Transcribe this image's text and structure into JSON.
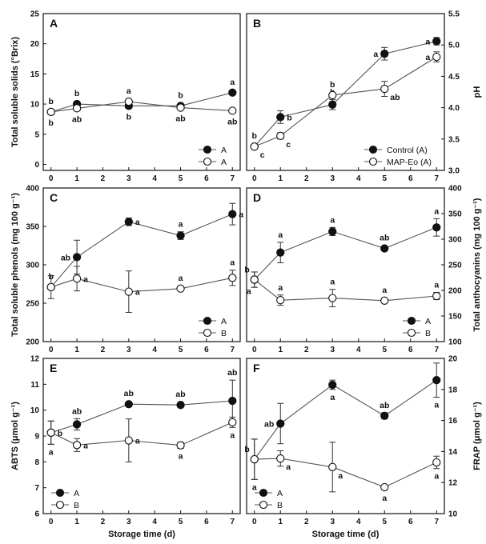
{
  "chart_data": [
    {
      "panel": "A",
      "type": "line",
      "x": [
        0,
        1,
        3,
        5,
        7
      ],
      "xlim": [
        -0.3,
        7.3
      ],
      "xticks": [
        0,
        1,
        2,
        3,
        4,
        5,
        6,
        7
      ],
      "ylim": [
        -1,
        25
      ],
      "yticks": [
        0,
        5,
        10,
        15,
        20,
        25
      ],
      "ylabel": "Total soluble solids (°Brix)",
      "yaxis_side": "left",
      "xlabel": "",
      "series": [
        {
          "name": "A",
          "marker": "filled",
          "values": [
            8.7,
            10.0,
            9.7,
            9.7,
            11.9
          ],
          "errors": [
            0,
            0,
            0,
            0,
            0
          ],
          "letters": [
            "b",
            "b",
            "b",
            "b",
            "a"
          ],
          "letter_pos": [
            "above",
            "above",
            "below",
            "above",
            "above"
          ]
        },
        {
          "name": "A",
          "marker": "open",
          "values": [
            8.7,
            9.3,
            10.4,
            9.4,
            8.9
          ],
          "errors": [
            0,
            0,
            0,
            0,
            0
          ],
          "letters": [
            "b",
            "ab",
            "a",
            "ab",
            "ab"
          ],
          "letter_pos": [
            "below",
            "below",
            "above",
            "below",
            "below"
          ]
        }
      ],
      "legend": "bottom-right"
    },
    {
      "panel": "B",
      "type": "line",
      "x": [
        0,
        1,
        3,
        5,
        7
      ],
      "xlim": [
        -0.3,
        7.3
      ],
      "xticks": [
        0,
        1,
        2,
        3,
        4,
        5,
        6,
        7
      ],
      "ylim": [
        3.0,
        5.5
      ],
      "yticks": [
        3.0,
        3.5,
        4.0,
        4.5,
        5.0,
        5.5
      ],
      "ylabel": "pH",
      "yaxis_side": "right",
      "xlabel": "",
      "series": [
        {
          "name": "Control (A)",
          "marker": "filled",
          "values": [
            3.38,
            3.85,
            4.05,
            4.86,
            5.06
          ],
          "errors": [
            0.03,
            0.1,
            0.08,
            0.1,
            0.06
          ],
          "letters": [
            "b",
            "b",
            "b",
            "a",
            "a"
          ],
          "letter_pos": [
            "above",
            "right",
            "above",
            "left",
            "left"
          ]
        },
        {
          "name": "MAP-Eo (A)",
          "marker": "open",
          "values": [
            3.38,
            3.55,
            4.2,
            4.3,
            4.81
          ],
          "errors": [
            0.03,
            0.05,
            0.02,
            0.12,
            0.08
          ],
          "letters": [
            "c",
            "c",
            "b",
            "ab",
            "a"
          ],
          "letter_pos": [
            "below-right",
            "below-right",
            "above",
            "below-right",
            "left"
          ]
        }
      ],
      "legend": "bottom-right"
    },
    {
      "panel": "C",
      "type": "line",
      "x": [
        0,
        1,
        3,
        5,
        7
      ],
      "xlim": [
        -0.3,
        7.3
      ],
      "xticks": [
        0,
        1,
        2,
        3,
        4,
        5,
        6,
        7
      ],
      "ylim": [
        200,
        400
      ],
      "yticks": [
        200,
        250,
        300,
        350,
        400
      ],
      "ylabel": "Total soluble phenols (mg 100 g⁻¹)",
      "yaxis_side": "left",
      "xlabel": "",
      "series": [
        {
          "name": "A",
          "marker": "filled",
          "values": [
            271,
            310,
            356,
            338,
            366
          ],
          "errors": [
            0,
            22,
            5,
            5,
            14
          ],
          "letters": [
            "b",
            "ab",
            "a",
            "a",
            "a"
          ],
          "letter_pos": [
            "above",
            "left",
            "right",
            "above",
            "right"
          ]
        },
        {
          "name": "B",
          "marker": "open",
          "values": [
            271,
            282,
            265,
            269,
            283
          ],
          "errors": [
            15,
            16,
            27,
            3,
            10
          ],
          "letters": [
            "",
            "a",
            "a",
            "a",
            "a"
          ],
          "letter_pos": [
            "above",
            "right",
            "right",
            "above",
            "above"
          ]
        }
      ],
      "legend": "bottom-right"
    },
    {
      "panel": "D",
      "type": "line",
      "x": [
        0,
        1,
        3,
        5,
        7
      ],
      "xlim": [
        -0.3,
        7.3
      ],
      "xticks": [
        0,
        1,
        2,
        3,
        4,
        5,
        6,
        7
      ],
      "ylim": [
        100,
        400
      ],
      "yticks": [
        100,
        150,
        200,
        250,
        300,
        350,
        400
      ],
      "ylabel": "Total anthocyanins (mg 100 g⁻¹)",
      "yaxis_side": "right",
      "xlabel": "",
      "series": [
        {
          "name": "A",
          "marker": "filled",
          "values": [
            221,
            274,
            315,
            282,
            323
          ],
          "errors": [
            15,
            20,
            8,
            3,
            17
          ],
          "letters": [
            "b",
            "a",
            "a",
            "ab",
            "a"
          ],
          "letter_pos": [
            "above-left",
            "above",
            "above",
            "above",
            "above"
          ]
        },
        {
          "name": "B",
          "marker": "open",
          "values": [
            221,
            181,
            185,
            180,
            189
          ],
          "errors": [
            15,
            10,
            17,
            3,
            7
          ],
          "letters": [
            "a",
            "a",
            "a",
            "a",
            "a"
          ],
          "letter_pos": [
            "below-left",
            "above",
            "above",
            "above",
            "above"
          ]
        }
      ],
      "legend": "bottom-right"
    },
    {
      "panel": "E",
      "type": "line",
      "x": [
        0,
        1,
        3,
        5,
        7
      ],
      "xlim": [
        -0.3,
        7.3
      ],
      "xticks": [
        0,
        1,
        2,
        3,
        4,
        5,
        6,
        7
      ],
      "ylim": [
        6,
        12
      ],
      "yticks": [
        6,
        7,
        8,
        9,
        10,
        11,
        12
      ],
      "ylabel": "ABTS (μmol g⁻¹)",
      "yaxis_side": "left",
      "xlabel": "Storage time (d)",
      "series": [
        {
          "name": "A",
          "marker": "filled",
          "values": [
            9.13,
            9.45,
            10.23,
            10.2,
            10.36
          ],
          "errors": [
            0.45,
            0.22,
            0,
            0,
            0.8
          ],
          "letters": [
            "b",
            "ab",
            "ab",
            "ab",
            "ab"
          ],
          "letter_pos": [
            "right",
            "above",
            "above",
            "above",
            "above"
          ]
        },
        {
          "name": "B",
          "marker": "open",
          "values": [
            9.13,
            8.65,
            8.83,
            8.64,
            9.53
          ],
          "errors": [
            0.45,
            0.25,
            0.83,
            0.12,
            0.2
          ],
          "letters": [
            "a",
            "a",
            "a",
            "a",
            "a"
          ],
          "letter_pos": [
            "below",
            "right",
            "right",
            "below",
            "below"
          ]
        }
      ],
      "legend": "bottom-left"
    },
    {
      "panel": "F",
      "type": "line",
      "x": [
        0,
        1,
        3,
        5,
        7
      ],
      "xlim": [
        -0.3,
        7.3
      ],
      "xticks": [
        0,
        1,
        2,
        3,
        4,
        5,
        6,
        7
      ],
      "ylim": [
        10,
        20
      ],
      "yticks": [
        10,
        12,
        14,
        16,
        18,
        20
      ],
      "ylabel": "FRAP (μmol g⁻¹)",
      "yaxis_side": "right",
      "xlabel": "Storage time (d)",
      "series": [
        {
          "name": "A",
          "marker": "filled",
          "values": [
            13.5,
            15.8,
            18.3,
            16.3,
            18.6
          ],
          "errors": [
            1.3,
            1.3,
            0.3,
            0.2,
            1.1
          ],
          "letters": [
            "b",
            "ab",
            "a",
            "ab",
            "a"
          ],
          "letter_pos": [
            "above-left",
            "left",
            "below",
            "above",
            "below"
          ]
        },
        {
          "name": "B",
          "marker": "open",
          "values": [
            13.5,
            13.55,
            13.0,
            11.7,
            13.3
          ],
          "errors": [
            1.3,
            0.5,
            1.6,
            0.1,
            0.4
          ],
          "letters": [
            "a",
            "a",
            "a",
            "a",
            "a"
          ],
          "letter_pos": [
            "below",
            "below-right",
            "below-right",
            "below",
            "below"
          ]
        }
      ],
      "legend": "bottom-left"
    }
  ]
}
